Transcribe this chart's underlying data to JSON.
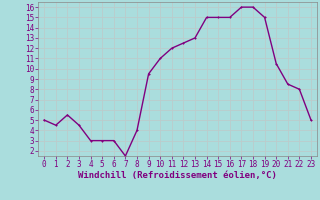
{
  "x": [
    0,
    1,
    2,
    3,
    4,
    5,
    6,
    7,
    8,
    9,
    10,
    11,
    12,
    13,
    14,
    15,
    16,
    17,
    18,
    19,
    20,
    21,
    22,
    23
  ],
  "y": [
    5,
    4.5,
    5.5,
    4.5,
    3,
    3,
    3,
    1.5,
    4,
    9.5,
    11,
    12,
    12.5,
    13,
    15,
    15,
    15,
    16,
    16,
    15,
    10.5,
    8.5,
    8,
    5
  ],
  "line_color": "#800080",
  "marker_color": "#800080",
  "bg_color": "#aadddd",
  "grid_color": "#bbcccc",
  "xlabel": "Windchill (Refroidissement éolien,°C)",
  "xlabel_color": "#800080",
  "xlim": [
    -0.5,
    23.5
  ],
  "ylim": [
    1.5,
    16.5
  ],
  "yticks": [
    2,
    3,
    4,
    5,
    6,
    7,
    8,
    9,
    10,
    11,
    12,
    13,
    14,
    15,
    16
  ],
  "xticks": [
    0,
    1,
    2,
    3,
    4,
    5,
    6,
    7,
    8,
    9,
    10,
    11,
    12,
    13,
    14,
    15,
    16,
    17,
    18,
    19,
    20,
    21,
    22,
    23
  ],
  "tick_label_color": "#800080",
  "tick_label_size": 5.5,
  "xlabel_size": 6.5,
  "line_width": 1.0,
  "marker_size": 2.0
}
